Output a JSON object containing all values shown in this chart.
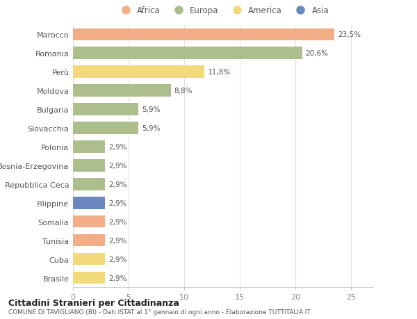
{
  "categories": [
    "Marocco",
    "Romania",
    "Perù",
    "Moldova",
    "Bulgaria",
    "Slovacchia",
    "Polonia",
    "Bosnia-Erzegovina",
    "Repubblica Ceca",
    "Filippine",
    "Somalia",
    "Tunisia",
    "Cuba",
    "Brasile"
  ],
  "values": [
    23.5,
    20.6,
    11.8,
    8.8,
    5.9,
    5.9,
    2.9,
    2.9,
    2.9,
    2.9,
    2.9,
    2.9,
    2.9,
    2.9
  ],
  "labels": [
    "23,5%",
    "20,6%",
    "11,8%",
    "8,8%",
    "5,9%",
    "5,9%",
    "2,9%",
    "2,9%",
    "2,9%",
    "2,9%",
    "2,9%",
    "2,9%",
    "2,9%",
    "2,9%"
  ],
  "continents": [
    "Africa",
    "Europa",
    "America",
    "Europa",
    "Europa",
    "Europa",
    "Europa",
    "Europa",
    "Europa",
    "Asia",
    "Africa",
    "Africa",
    "America",
    "America"
  ],
  "colors": {
    "Africa": "#F2AD85",
    "Europa": "#ABBE8C",
    "America": "#F2D97A",
    "Asia": "#6A87C0"
  },
  "legend_order": [
    "Africa",
    "Europa",
    "America",
    "Asia"
  ],
  "xlim": [
    0,
    27
  ],
  "xticks": [
    0,
    5,
    10,
    15,
    20,
    25
  ],
  "title1": "Cittadini Stranieri per Cittadinanza",
  "title2": "COMUNE DI TAVIGLIANO (BI) - Dati ISTAT al 1° gennaio di ogni anno - Elaborazione TUTTITALIA.IT",
  "background_color": "#ffffff",
  "plot_bg_color": "#ffffff"
}
